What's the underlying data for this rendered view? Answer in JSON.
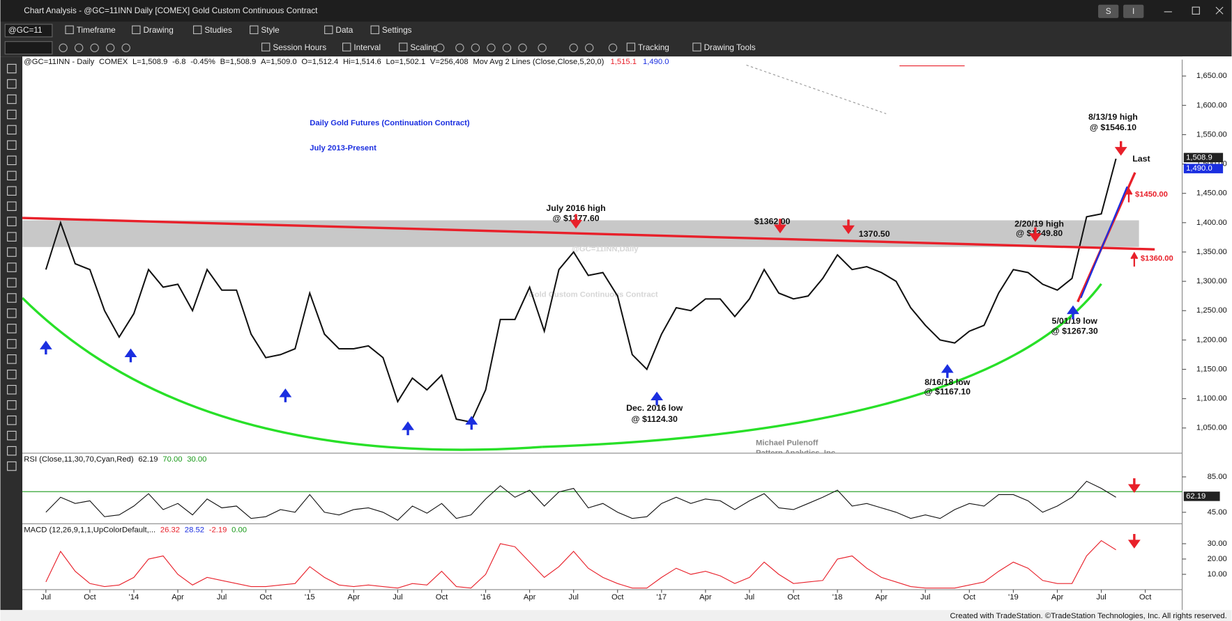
{
  "window": {
    "title": "Chart Analysis - @GC=11INN Daily [COMEX] Gold Custom Continuous Contract",
    "buttons": [
      "S",
      "I"
    ]
  },
  "toolbar": {
    "symbol": "@GC=11",
    "row1": [
      "Timeframe",
      "Drawing",
      "Studies",
      "Style",
      "Data",
      "Settings"
    ],
    "row2": [
      "Session Hours",
      "Interval",
      "Scaling",
      "Tracking",
      "Drawing Tools"
    ]
  },
  "info_line": {
    "fields": [
      "@GC=11INN - Daily",
      "COMEX",
      "L=1,508.9",
      "-6.8",
      "-0.45%",
      "B=1,508.9",
      "A=1,509.0",
      "O=1,512.4",
      "Hi=1,514.6",
      "Lo=1,502.1",
      "V=256,408",
      "Mov Avg 2 Lines (Close,Close,5,20,0)"
    ],
    "ma_values": [
      {
        "text": "1,515.1",
        "color": "#e8202a"
      },
      {
        "text": "1,490.0",
        "color": "#1b2fe0"
      }
    ]
  },
  "watermark": [
    "@GC=11INN,Daily",
    "Gold Custom Continuous Contract"
  ],
  "credit": [
    "Michael Pulenoff",
    "Pattern Analytics, Inc."
  ],
  "footer": "Created with TradeStation. ©TradeStation Technologies, Inc. All rights reserved.",
  "chart_data": [
    {
      "type": "line",
      "title": "Daily Gold Futures (Continuation Contract)",
      "subtitle": "July 2013-Present",
      "categories": [
        "Jul",
        null,
        null,
        "Oct",
        null,
        null,
        "'14",
        null,
        null,
        "Apr",
        null,
        null,
        "Jul",
        null,
        null,
        "Oct",
        null,
        null,
        "'15",
        null,
        null,
        "Apr",
        null,
        null,
        "Jul",
        null,
        null,
        "Oct",
        null,
        null,
        "'16",
        null,
        null,
        "Apr",
        null,
        null,
        "Jul",
        null,
        null,
        "Oct",
        null,
        null,
        "'17",
        null,
        null,
        "Apr",
        null,
        null,
        "Jul",
        null,
        null,
        "Oct",
        null,
        null,
        "'18",
        null,
        null,
        "Apr",
        null,
        null,
        "Jul",
        null,
        null,
        "Oct",
        null,
        null,
        "'19",
        null,
        null,
        "Apr",
        null,
        null,
        "Jul",
        null,
        null,
        "Oct"
      ],
      "values": [
        1320,
        1400,
        1330,
        1320,
        1250,
        1205,
        1245,
        1320,
        1290,
        1295,
        1250,
        1320,
        1285,
        1285,
        1210,
        1170,
        1175,
        1185,
        1280,
        1210,
        1185,
        1185,
        1190,
        1170,
        1095,
        1135,
        1115,
        1140,
        1065,
        1060,
        1115,
        1235,
        1235,
        1290,
        1215,
        1320,
        1350,
        1310,
        1315,
        1275,
        1175,
        1150,
        1210,
        1255,
        1250,
        1270,
        1270,
        1240,
        1270,
        1320,
        1280,
        1270,
        1275,
        1305,
        1345,
        1320,
        1325,
        1315,
        1300,
        1255,
        1225,
        1200,
        1195,
        1215,
        1225,
        1280,
        1320,
        1315,
        1295,
        1285,
        1305,
        1410,
        1415,
        1509,
        null,
        null
      ],
      "color": "#111111",
      "ylim": [
        1007,
        1678
      ],
      "yticks": [
        {
          "value": 1050,
          "label": "1,050.00"
        },
        {
          "value": 1100,
          "label": "1,100.00"
        },
        {
          "value": 1150,
          "label": "1,150.00"
        },
        {
          "value": 1200,
          "label": "1,200.00"
        },
        {
          "value": 1250,
          "label": "1,250.00"
        },
        {
          "value": 1300,
          "label": "1,300.00"
        },
        {
          "value": 1350,
          "label": "1,350.00"
        },
        {
          "value": 1400,
          "label": "1,400.00"
        },
        {
          "value": 1450,
          "label": "1,450.00"
        },
        {
          "value": 1500,
          "label": "1,500.00"
        },
        {
          "value": 1550,
          "label": "1,550.00"
        },
        {
          "value": 1600,
          "label": "1,600.00"
        },
        {
          "value": 1650,
          "label": "1,650.00"
        }
      ],
      "annotations": [
        "July 2016 high",
        "@ $1377.60",
        "$1362.00",
        "1370.50",
        "2/20/19 high",
        "@ $1349.80",
        "8/13/19 high",
        "@ $1546.10",
        "5/01/19 low",
        "@ $1267.30",
        "8/16/18 low",
        "@ $1167.10",
        "Dec. 2016 low",
        "@ $1124.30",
        "Last"
      ],
      "targets": [
        "$1450.00",
        "$1360.00"
      ],
      "last_labels": [
        {
          "text": "1,508.9",
          "color": "#222222"
        },
        {
          "text": "1,490.0",
          "color": "#1b2fe0"
        }
      ]
    },
    {
      "type": "line",
      "header": [
        "RSI (Close,11,30,70,Cyan,Red)",
        "62.19",
        "70.00",
        "30.00"
      ],
      "values": [
        45,
        62,
        55,
        58,
        40,
        42,
        52,
        66,
        48,
        55,
        42,
        60,
        50,
        52,
        38,
        40,
        48,
        45,
        65,
        45,
        42,
        48,
        50,
        45,
        36,
        52,
        44,
        55,
        38,
        42,
        60,
        75,
        62,
        70,
        52,
        68,
        72,
        50,
        55,
        45,
        38,
        40,
        55,
        62,
        55,
        60,
        58,
        48,
        58,
        66,
        50,
        48,
        55,
        62,
        70,
        52,
        55,
        50,
        45,
        38,
        42,
        38,
        48,
        55,
        52,
        65,
        65,
        58,
        45,
        52,
        62,
        80,
        72,
        62,
        null,
        null
      ],
      "color": "#111111",
      "ylim": [
        32,
        110
      ],
      "yticks": [
        {
          "value": 85,
          "label": "85.00"
        },
        {
          "value": 45,
          "label": "45.00"
        }
      ],
      "last_label": "62.19"
    },
    {
      "type": "line",
      "header": [
        "MACD (12,26,9,1,1,UpColorDefault,...",
        "26.32",
        "28.52",
        "-2.19",
        "0.00"
      ],
      "values": [
        5,
        25,
        12,
        4,
        2,
        3,
        8,
        20,
        22,
        10,
        3,
        8,
        6,
        4,
        2,
        2,
        3,
        4,
        15,
        8,
        3,
        2,
        3,
        2,
        1,
        4,
        3,
        12,
        2,
        1,
        10,
        30,
        28,
        18,
        8,
        15,
        25,
        14,
        8,
        4,
        1,
        1,
        8,
        14,
        10,
        12,
        9,
        4,
        8,
        18,
        10,
        4,
        5,
        6,
        20,
        22,
        14,
        8,
        5,
        2,
        1,
        1,
        1,
        3,
        5,
        12,
        18,
        14,
        6,
        4,
        4,
        22,
        32,
        26,
        null,
        null
      ],
      "color": "#e8202a",
      "ylim": [
        0,
        42
      ],
      "yticks": [
        {
          "value": 30,
          "label": "30.00"
        },
        {
          "value": 20,
          "label": "20.00"
        },
        {
          "value": 10,
          "label": "10.00"
        }
      ]
    }
  ]
}
